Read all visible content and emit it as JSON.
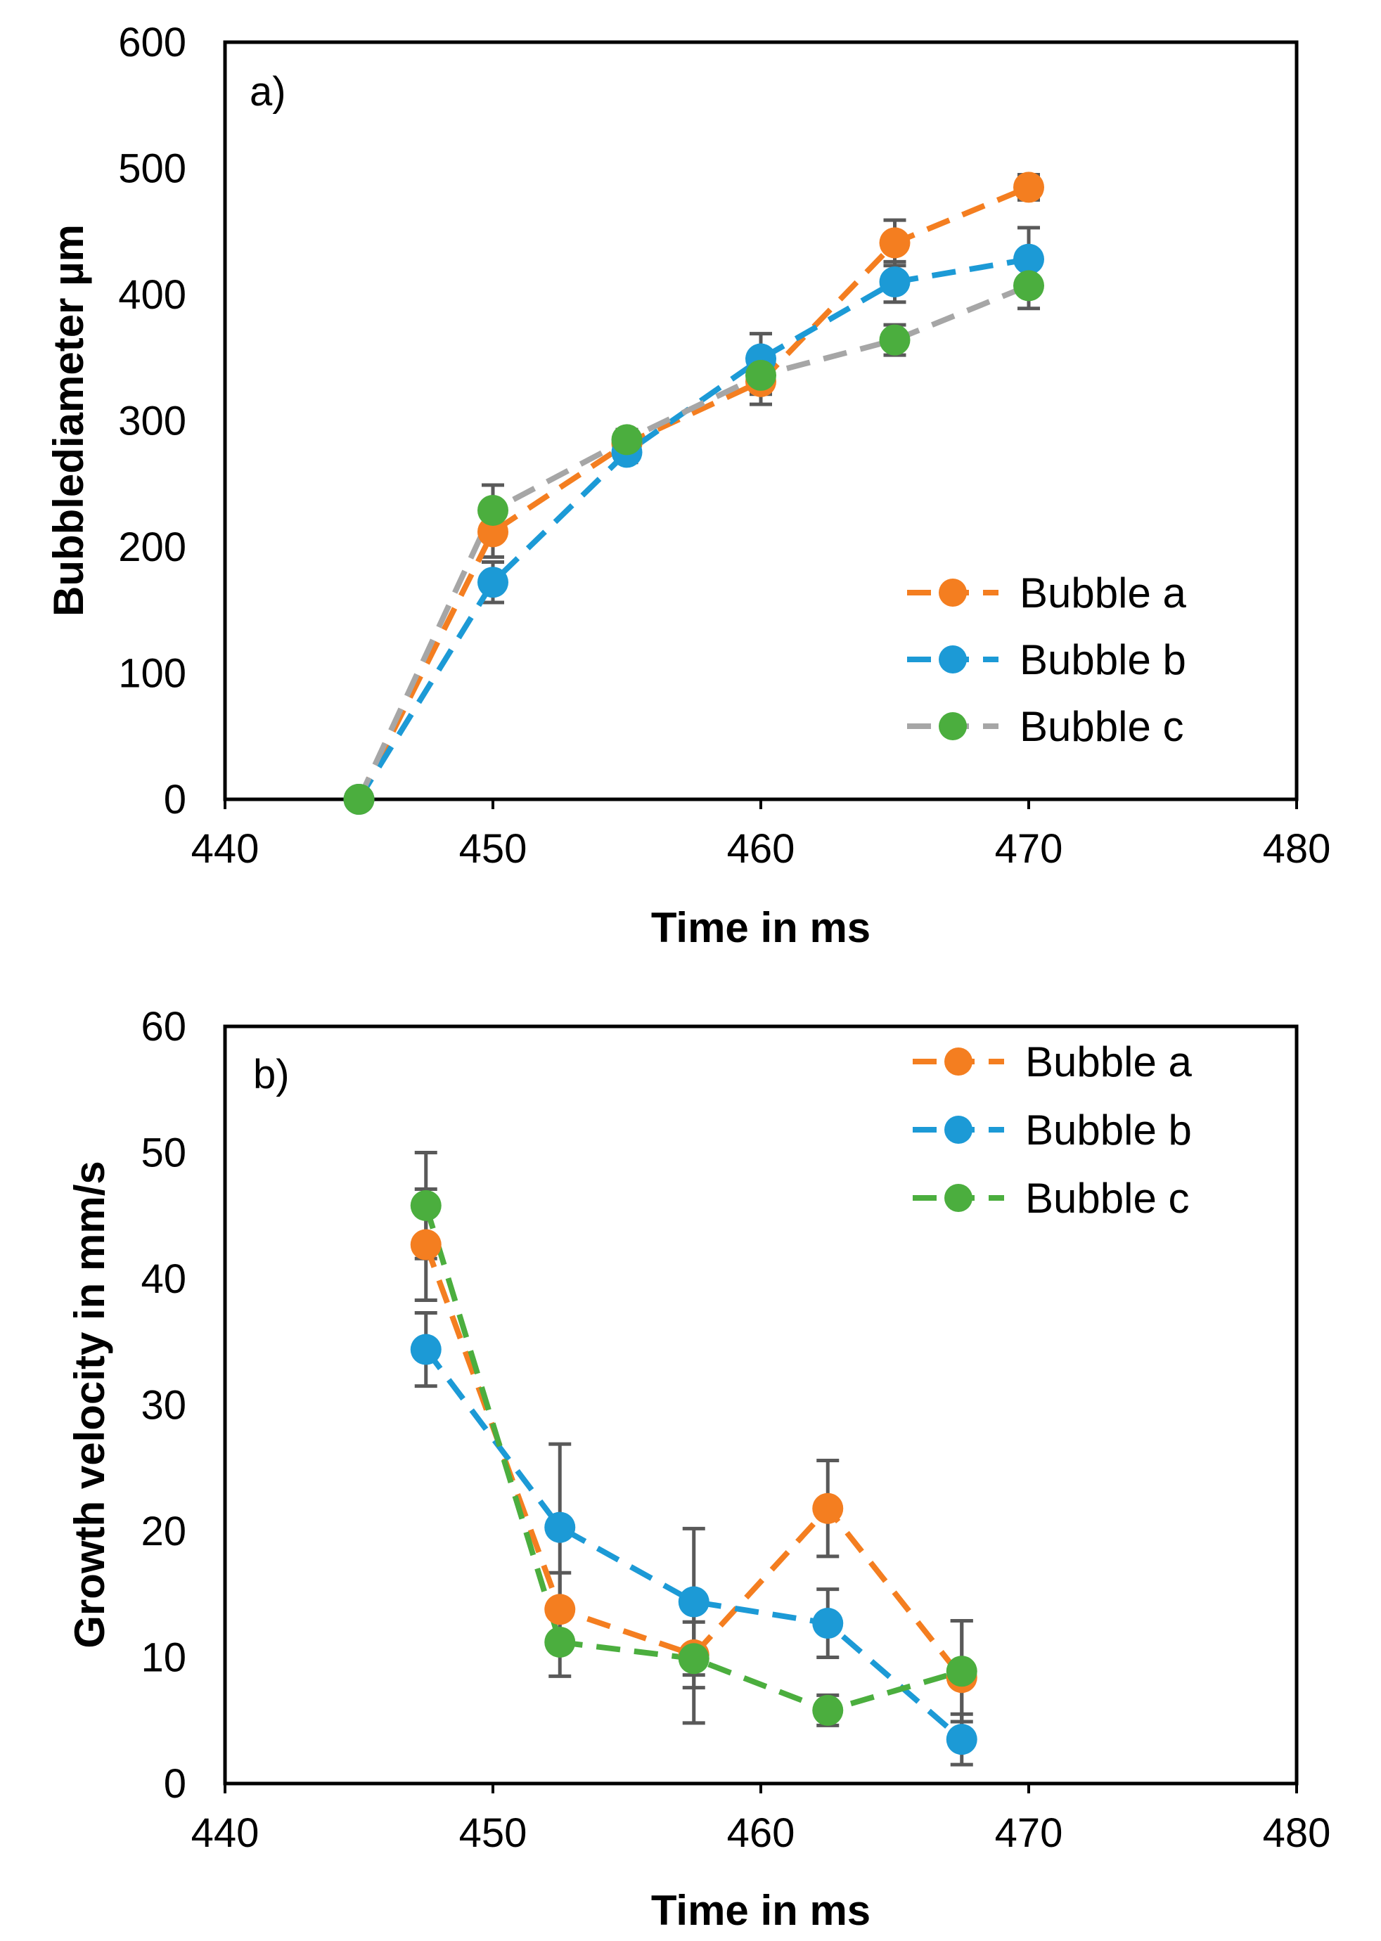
{
  "colors": {
    "bubble_a": "#F47E20",
    "bubble_b": "#1C9AD6",
    "bubble_c_line_top": "#A6A6A6",
    "bubble_c_marker": "#4BAE3E",
    "bubble_c_line_bottom": "#4BAE3E",
    "error_bar": "#595959",
    "axis": "#000000"
  },
  "chart_data": [
    {
      "type": "line",
      "panel_label": "a)",
      "title": "",
      "xlabel": "Time  in ms",
      "ylabel": "Bubblediameter  µm",
      "xlim": [
        440,
        480
      ],
      "ylim": [
        0,
        600
      ],
      "xticks": [
        "440",
        "450",
        "460",
        "470",
        "480"
      ],
      "yticks": [
        "0",
        "100",
        "200",
        "300",
        "400",
        "500",
        "600"
      ],
      "grid": false,
      "legend_position": "bottom-right",
      "series": [
        {
          "name": "Bubble a",
          "line_color": "#F47E20",
          "marker_color": "#F47E20",
          "x": [
            445,
            450,
            455,
            460,
            465,
            470
          ],
          "y": [
            0,
            212,
            282,
            331,
            441,
            485
          ],
          "err": [
            0,
            20,
            8,
            18,
            18,
            10
          ]
        },
        {
          "name": "Bubble b",
          "line_color": "#1C9AD6",
          "marker_color": "#1C9AD6",
          "x": [
            445,
            450,
            455,
            460,
            465,
            470
          ],
          "y": [
            0,
            172,
            275,
            349,
            410,
            428
          ],
          "err": [
            0,
            16,
            8,
            20,
            16,
            25
          ]
        },
        {
          "name": "Bubble c",
          "line_color": "#A6A6A6",
          "marker_color": "#4BAE3E",
          "x": [
            445,
            450,
            455,
            460,
            465,
            470
          ],
          "y": [
            0,
            229,
            285,
            336,
            364,
            407
          ],
          "err": [
            0,
            20,
            8,
            15,
            12,
            18
          ]
        }
      ]
    },
    {
      "type": "line",
      "panel_label": "b)",
      "title": "",
      "xlabel": "Time  in ms",
      "ylabel": "Growth velocity  in mm/s",
      "xlim": [
        440,
        480
      ],
      "ylim": [
        0,
        60
      ],
      "xticks": [
        "440",
        "450",
        "460",
        "470",
        "480"
      ],
      "yticks": [
        "0",
        "10",
        "20",
        "30",
        "40",
        "50",
        "60"
      ],
      "grid": false,
      "legend_position": "top-right",
      "series": [
        {
          "name": "Bubble a",
          "line_color": "#F47E20",
          "marker_color": "#F47E20",
          "x": [
            447.5,
            452.5,
            457.5,
            462.5,
            467.5
          ],
          "y": [
            42.7,
            13.8,
            10.2,
            21.8,
            8.4
          ],
          "err": [
            4.4,
            2.9,
            2.6,
            3.8,
            4.5
          ]
        },
        {
          "name": "Bubble b",
          "line_color": "#1C9AD6",
          "marker_color": "#1C9AD6",
          "x": [
            447.5,
            452.5,
            457.5,
            462.5,
            467.5
          ],
          "y": [
            34.4,
            20.3,
            14.4,
            12.7,
            3.5
          ],
          "err": [
            2.9,
            6.6,
            5.8,
            2.7,
            2.0
          ]
        },
        {
          "name": "Bubble c",
          "line_color": "#4BAE3E",
          "marker_color": "#4BAE3E",
          "x": [
            447.5,
            452.5,
            457.5,
            462.5,
            467.5
          ],
          "y": [
            45.8,
            11.2,
            9.9,
            5.8,
            8.9
          ],
          "err": [
            4.2,
            2.7,
            5.1,
            1.2,
            4.0
          ]
        }
      ]
    }
  ]
}
